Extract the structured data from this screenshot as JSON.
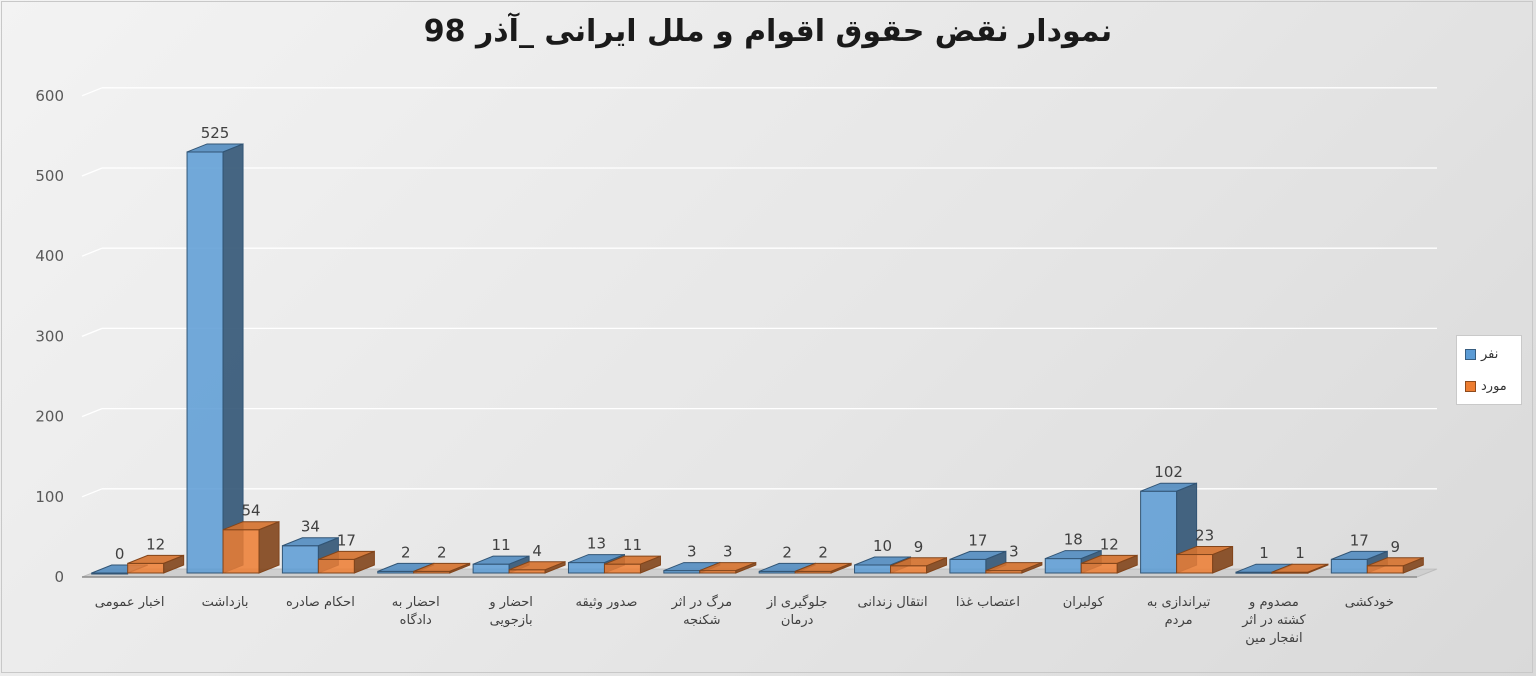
{
  "chart_data": {
    "type": "bar",
    "title": "نمودار نقض حقوق اقوام و ملل ایرانی _آذر 98",
    "categories": [
      [
        "اخبار عمومی"
      ],
      [
        "بازداشت"
      ],
      [
        "احکام صادره"
      ],
      [
        "احضار به",
        "دادگاه"
      ],
      [
        "احضار و",
        "بازجویی"
      ],
      [
        "صدور وثیقه"
      ],
      [
        "مرگ در اثر",
        "شکنجه"
      ],
      [
        "جلوگیری از",
        "درمان"
      ],
      [
        "انتقال زندانی"
      ],
      [
        "اعتصاب غذا"
      ],
      [
        "کولبران"
      ],
      [
        "تیراندازی به",
        "مردم"
      ],
      [
        "مصدوم و",
        "کشته در اثر",
        "انفجار مین"
      ],
      [
        "خودکشی"
      ]
    ],
    "series": [
      {
        "name": "نفر",
        "color": "#5b9bd5",
        "values": [
          0,
          525,
          34,
          2,
          11,
          13,
          3,
          2,
          10,
          17,
          18,
          102,
          1,
          17
        ]
      },
      {
        "name": "مورد",
        "color": "#ed7d31",
        "values": [
          12,
          54,
          17,
          2,
          4,
          11,
          3,
          2,
          9,
          3,
          12,
          23,
          1,
          9
        ]
      }
    ],
    "yticks": [
      0,
      100,
      200,
      300,
      400,
      500,
      600
    ],
    "ylim": [
      0,
      600
    ],
    "grid": true,
    "legend_position": "right"
  }
}
